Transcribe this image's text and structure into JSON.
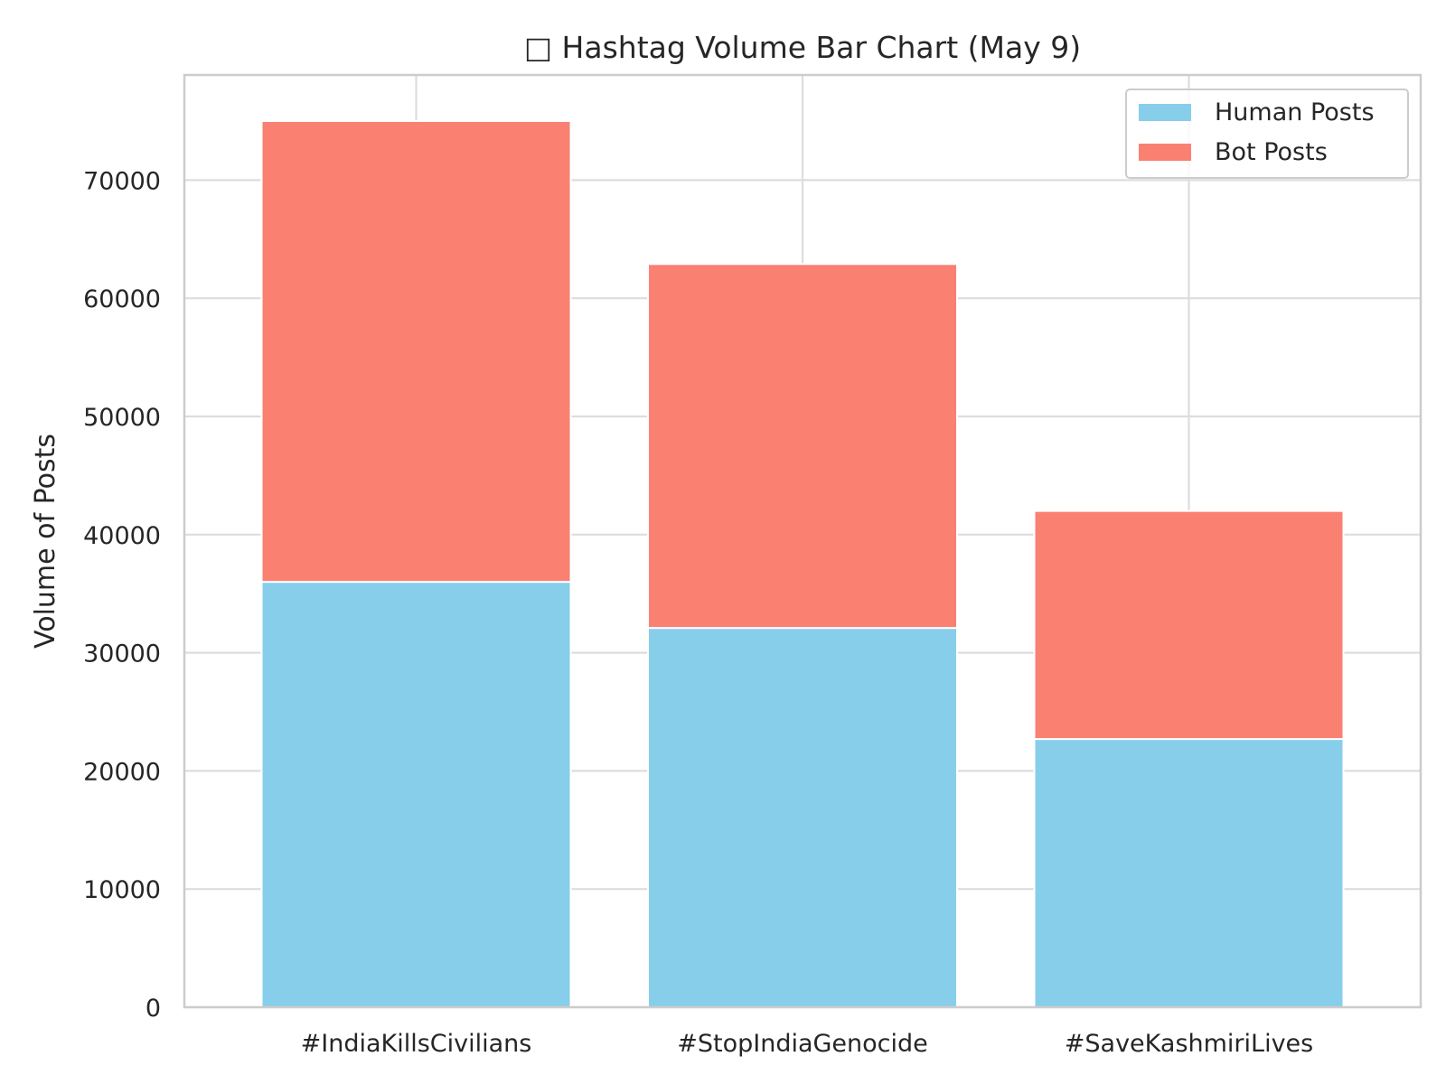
{
  "chart_data": {
    "type": "bar",
    "stacked": true,
    "title": "□ Hashtag Volume Bar Chart (May 9)",
    "xlabel": "",
    "ylabel": "Volume of Posts",
    "categories": [
      "#IndiaKillsCivilians",
      "#StopIndiaGenocide",
      "#SaveKashmiriLives"
    ],
    "series": [
      {
        "name": "Human Posts",
        "values": [
          36000,
          32100,
          22700
        ],
        "color": "#87CEEB"
      },
      {
        "name": "Bot Posts",
        "values": [
          39000,
          30800,
          19300
        ],
        "color": "#FA8072"
      }
    ],
    "ylim": [
      0,
      78900
    ],
    "yticks": [
      0,
      10000,
      20000,
      30000,
      40000,
      50000,
      60000,
      70000
    ],
    "grid": true,
    "legend_position": "top-right"
  }
}
